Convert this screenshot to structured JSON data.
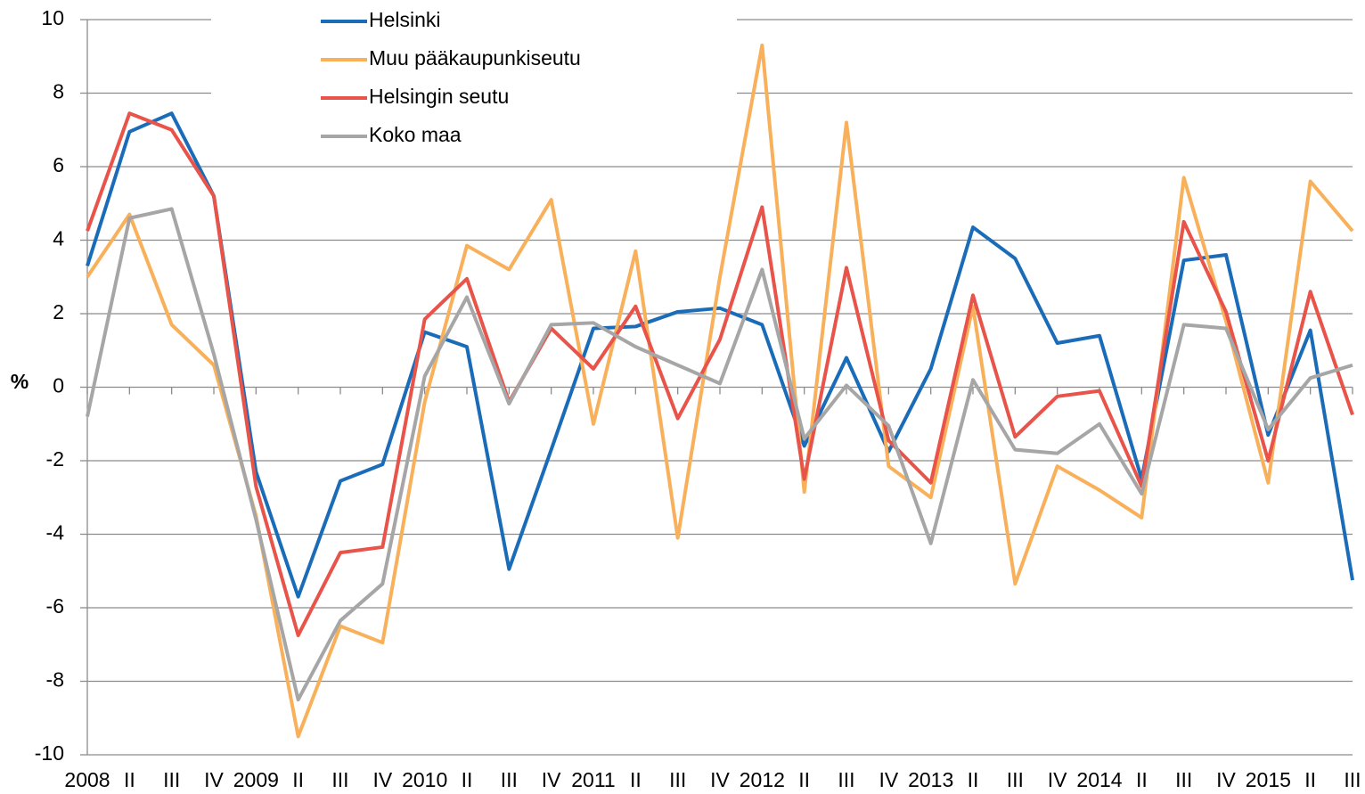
{
  "chart_data": {
    "type": "line",
    "y_label": "%",
    "categories": [
      "2008",
      "II",
      "III",
      "IV",
      "2009",
      "II",
      "III",
      "IV",
      "2010",
      "II",
      "III",
      "IV",
      "2011",
      "II",
      "III",
      "IV",
      "2012",
      "II",
      "III",
      "IV",
      "2013",
      "II",
      "III",
      "IV",
      "2014",
      "II",
      "III",
      "IV",
      "2015",
      "II",
      "III"
    ],
    "series": [
      {
        "name": "Helsinki",
        "color": "#1b6cb8",
        "values": [
          3.3,
          6.95,
          7.45,
          5.2,
          -2.3,
          -5.7,
          -2.55,
          -2.1,
          1.5,
          1.1,
          -4.95,
          -1.7,
          1.6,
          1.65,
          2.05,
          2.15,
          1.7,
          -1.6,
          0.8,
          -1.75,
          0.5,
          4.35,
          3.5,
          1.2,
          1.4,
          -2.5,
          3.45,
          3.6,
          -1.3,
          1.55,
          -5.25
        ]
      },
      {
        "name": "Muu pääkaupunkiseutu",
        "color": "#f9b05a",
        "values": [
          3.0,
          4.7,
          1.7,
          0.6,
          -3.5,
          -9.5,
          -6.5,
          -6.95,
          -0.4,
          3.85,
          3.2,
          5.1,
          -1.0,
          3.7,
          -4.1,
          3.0,
          9.3,
          -2.85,
          7.2,
          -2.15,
          -3.0,
          2.2,
          -5.35,
          -2.15,
          -2.8,
          -3.55,
          5.7,
          1.8,
          -2.6,
          5.6,
          4.25
        ]
      },
      {
        "name": "Helsingin seutu",
        "color": "#e8534a",
        "values": [
          4.25,
          7.45,
          7.0,
          5.2,
          -2.7,
          -6.75,
          -4.5,
          -4.35,
          1.85,
          2.95,
          -0.4,
          1.6,
          0.5,
          2.2,
          -0.85,
          1.3,
          4.9,
          -2.5,
          3.25,
          -1.45,
          -2.6,
          2.5,
          -1.35,
          -0.25,
          -0.1,
          -2.7,
          4.5,
          2.05,
          -2.0,
          2.6,
          -0.75
        ]
      },
      {
        "name": "Koko maa",
        "color": "#a6a6a6",
        "values": [
          -0.8,
          4.6,
          4.85,
          0.9,
          -3.6,
          -8.5,
          -6.35,
          -5.35,
          0.3,
          2.45,
          -0.45,
          1.7,
          1.75,
          1.1,
          0.6,
          0.1,
          3.2,
          -1.4,
          0.05,
          -1.05,
          -4.25,
          0.2,
          -1.7,
          -1.8,
          -1.0,
          -2.9,
          1.7,
          1.6,
          -1.15,
          0.25,
          0.6
        ]
      }
    ],
    "ylim": [
      -10,
      10
    ],
    "yticks": [
      -10,
      -8,
      -6,
      -4,
      -2,
      0,
      2,
      4,
      6,
      8,
      10
    ],
    "grid": true
  }
}
